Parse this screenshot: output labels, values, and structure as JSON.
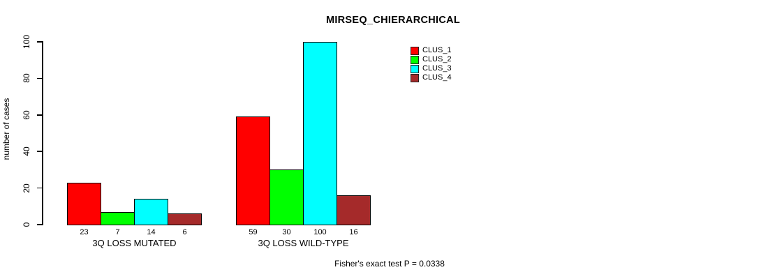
{
  "chart_data": {
    "type": "bar",
    "title": "MIRSEQ_CHIERARCHICAL",
    "ylabel": "number of cases",
    "xlabel": "",
    "caption": "Fisher's exact test P = 0.0338",
    "categories": [
      "3Q LOSS MUTATED",
      "3Q LOSS WILD-TYPE"
    ],
    "series": [
      {
        "name": "CLUS_1",
        "color": "#FF0000",
        "values": [
          23,
          59
        ]
      },
      {
        "name": "CLUS_2",
        "color": "#00FF00",
        "values": [
          7,
          30
        ]
      },
      {
        "name": "CLUS_3",
        "color": "#00FFFF",
        "values": [
          14,
          100
        ]
      },
      {
        "name": "CLUS_4",
        "color": "#A52A2A",
        "values": [
          6,
          16
        ]
      }
    ],
    "ylim": [
      0,
      100
    ],
    "yticks": [
      0,
      20,
      40,
      60,
      80,
      100
    ],
    "value_labels_shown": true,
    "legend_position": "top-right",
    "grid": false,
    "background_color": "#FFFFFF",
    "axis_color": "#000000"
  }
}
